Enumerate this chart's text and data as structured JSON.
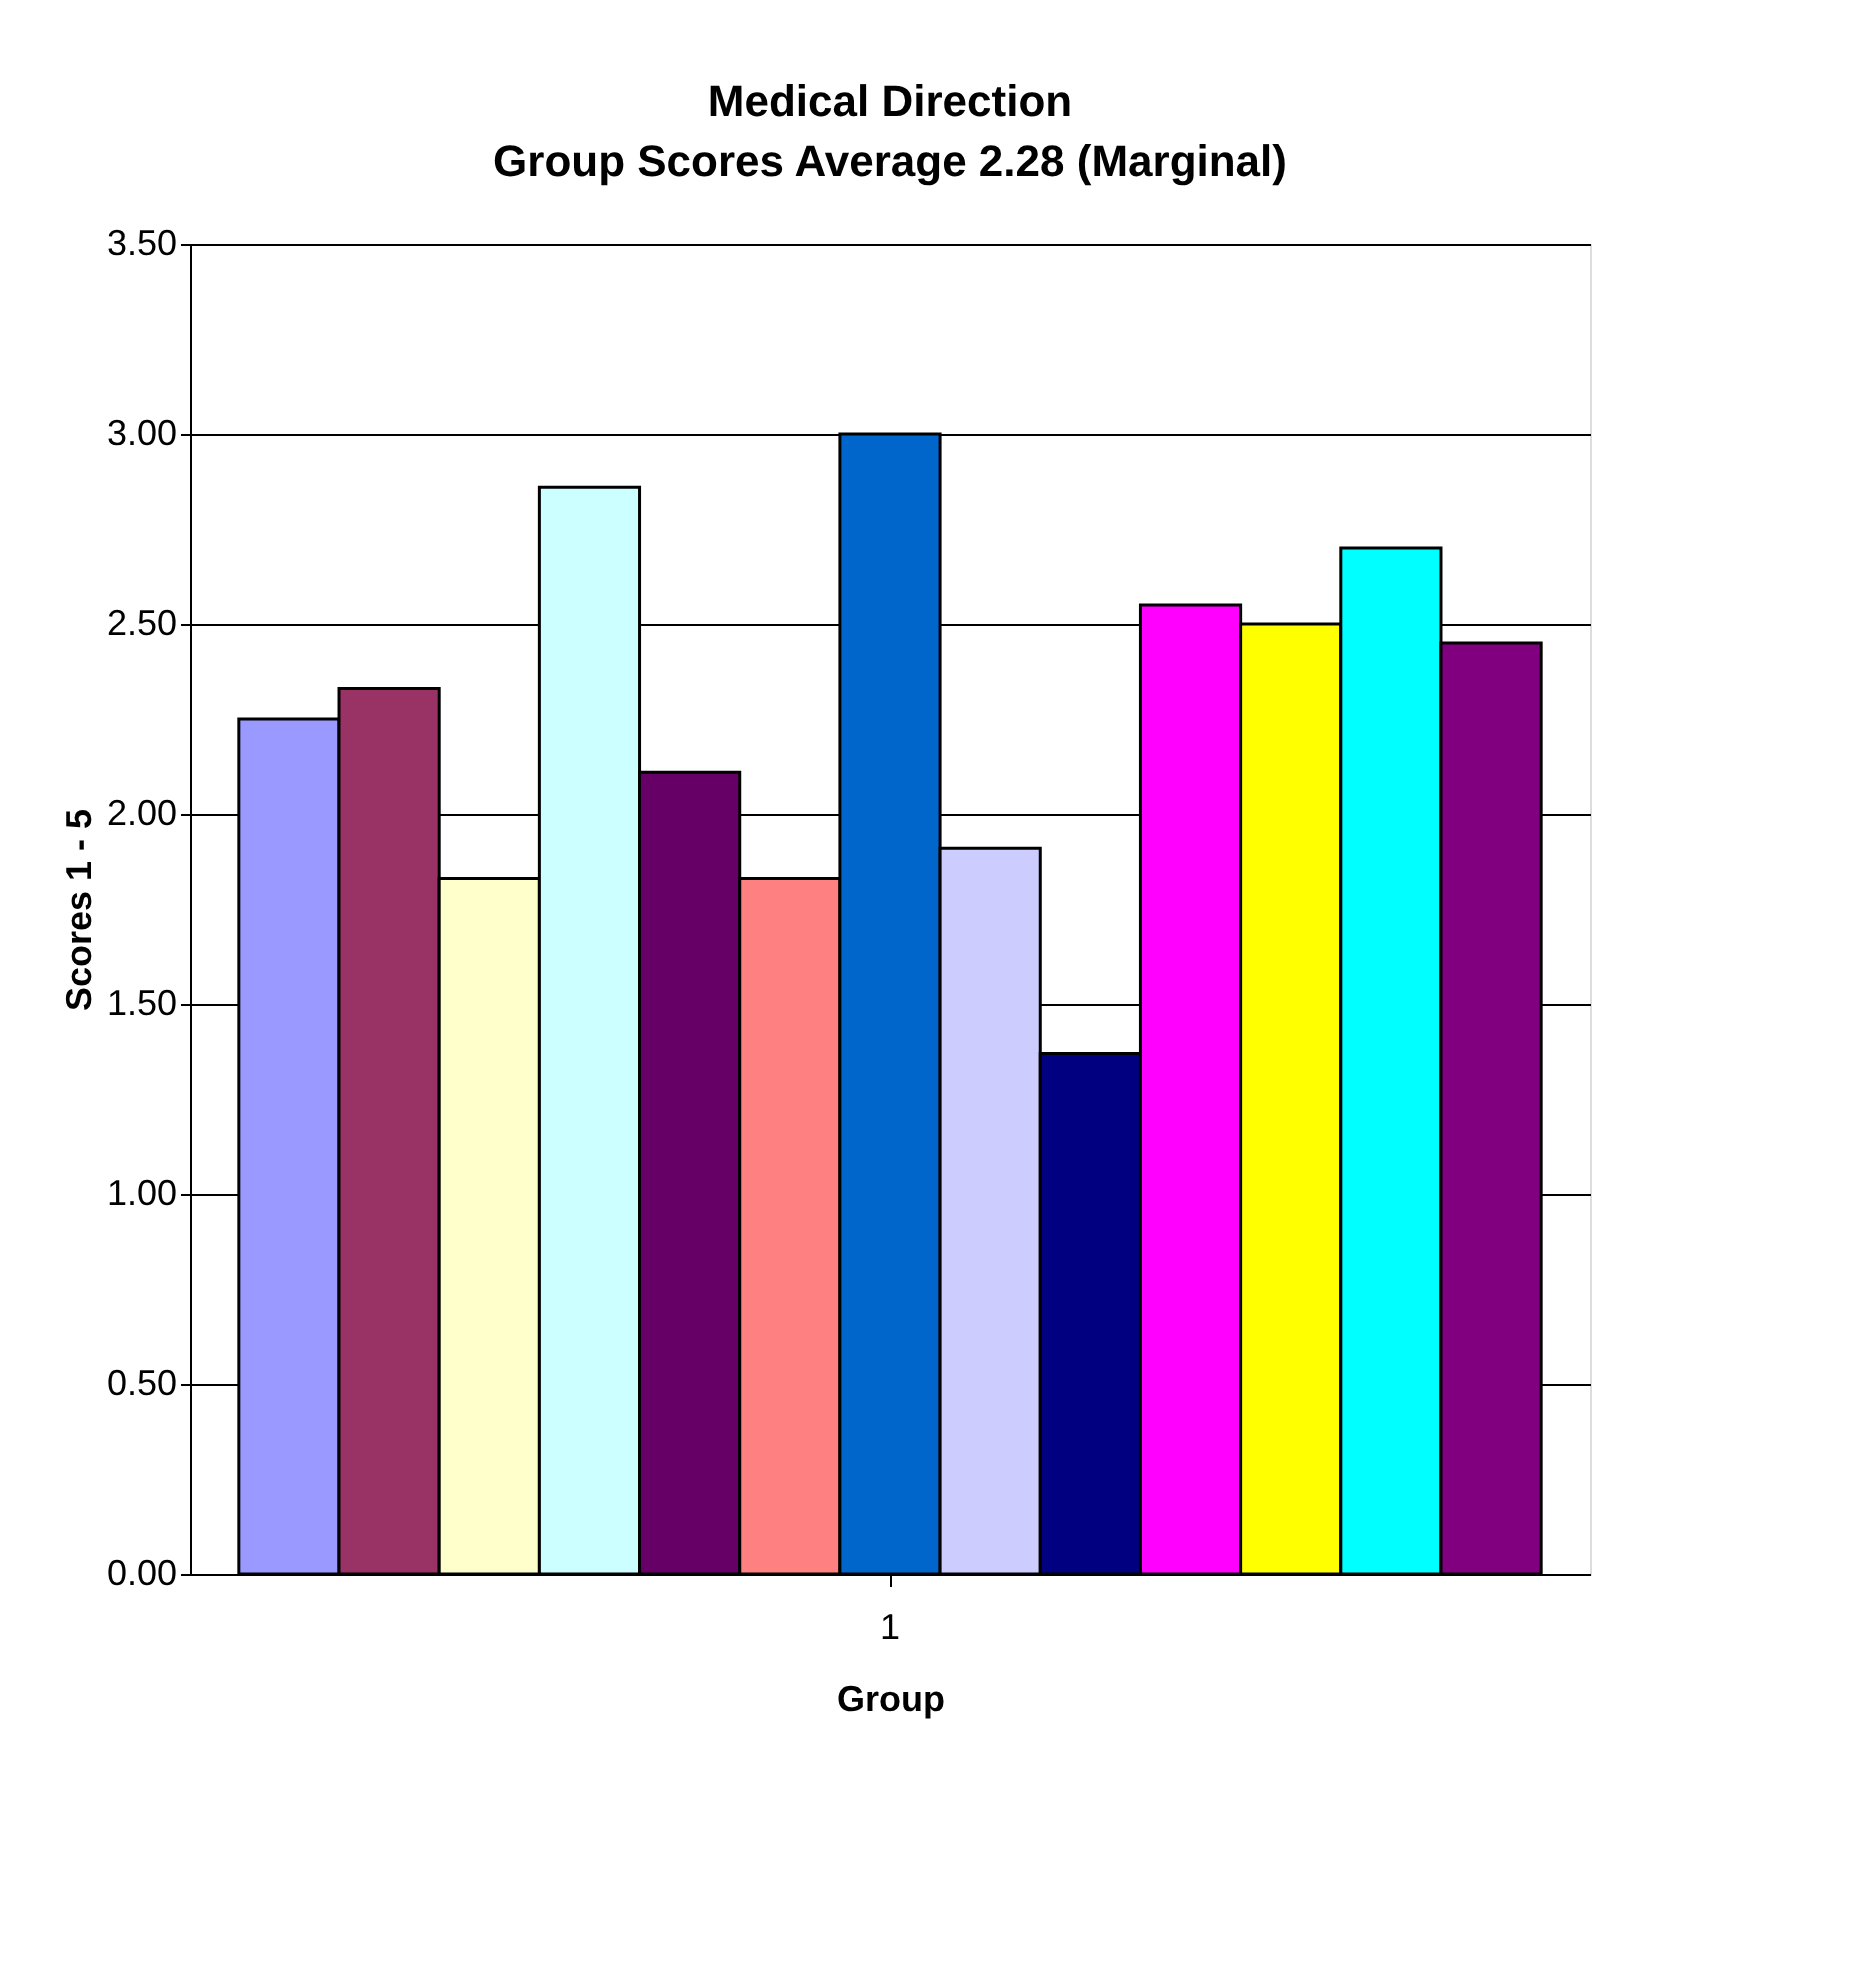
{
  "chart_data": {
    "type": "bar",
    "title": "Medical Direction",
    "subtitle": "Group Scores Average 2.28 (Marginal)",
    "xlabel": "Group",
    "ylabel": "Scores 1 - 5",
    "categories": [
      "1"
    ],
    "series": [
      {
        "color": "#9999ff",
        "values": [
          2.25
        ]
      },
      {
        "color": "#993366",
        "values": [
          2.33
        ]
      },
      {
        "color": "#ffffcc",
        "values": [
          1.83
        ]
      },
      {
        "color": "#ccffff",
        "values": [
          2.86
        ]
      },
      {
        "color": "#660066",
        "values": [
          2.11
        ]
      },
      {
        "color": "#ff8080",
        "values": [
          1.83
        ]
      },
      {
        "color": "#0066cc",
        "values": [
          3.0
        ]
      },
      {
        "color": "#ccccff",
        "values": [
          1.91
        ]
      },
      {
        "color": "#000080",
        "values": [
          1.37
        ]
      },
      {
        "color": "#ff00ff",
        "values": [
          2.55
        ]
      },
      {
        "color": "#ffff00",
        "values": [
          2.5
        ]
      },
      {
        "color": "#00ffff",
        "values": [
          2.7
        ]
      },
      {
        "color": "#800080",
        "values": [
          2.45
        ]
      }
    ],
    "ylim": [
      0,
      3.5
    ],
    "yticks": [
      {
        "value": 0,
        "label": "0.00"
      },
      {
        "value": 0.5,
        "label": "0.50"
      },
      {
        "value": 1,
        "label": "1.00"
      },
      {
        "value": 1.5,
        "label": "1.50"
      },
      {
        "value": 2,
        "label": "2.00"
      },
      {
        "value": 2.5,
        "label": "2.50"
      },
      {
        "value": 3,
        "label": "3.00"
      },
      {
        "value": 3.5,
        "label": "3.50"
      }
    ],
    "grid": "y",
    "legend": false
  }
}
